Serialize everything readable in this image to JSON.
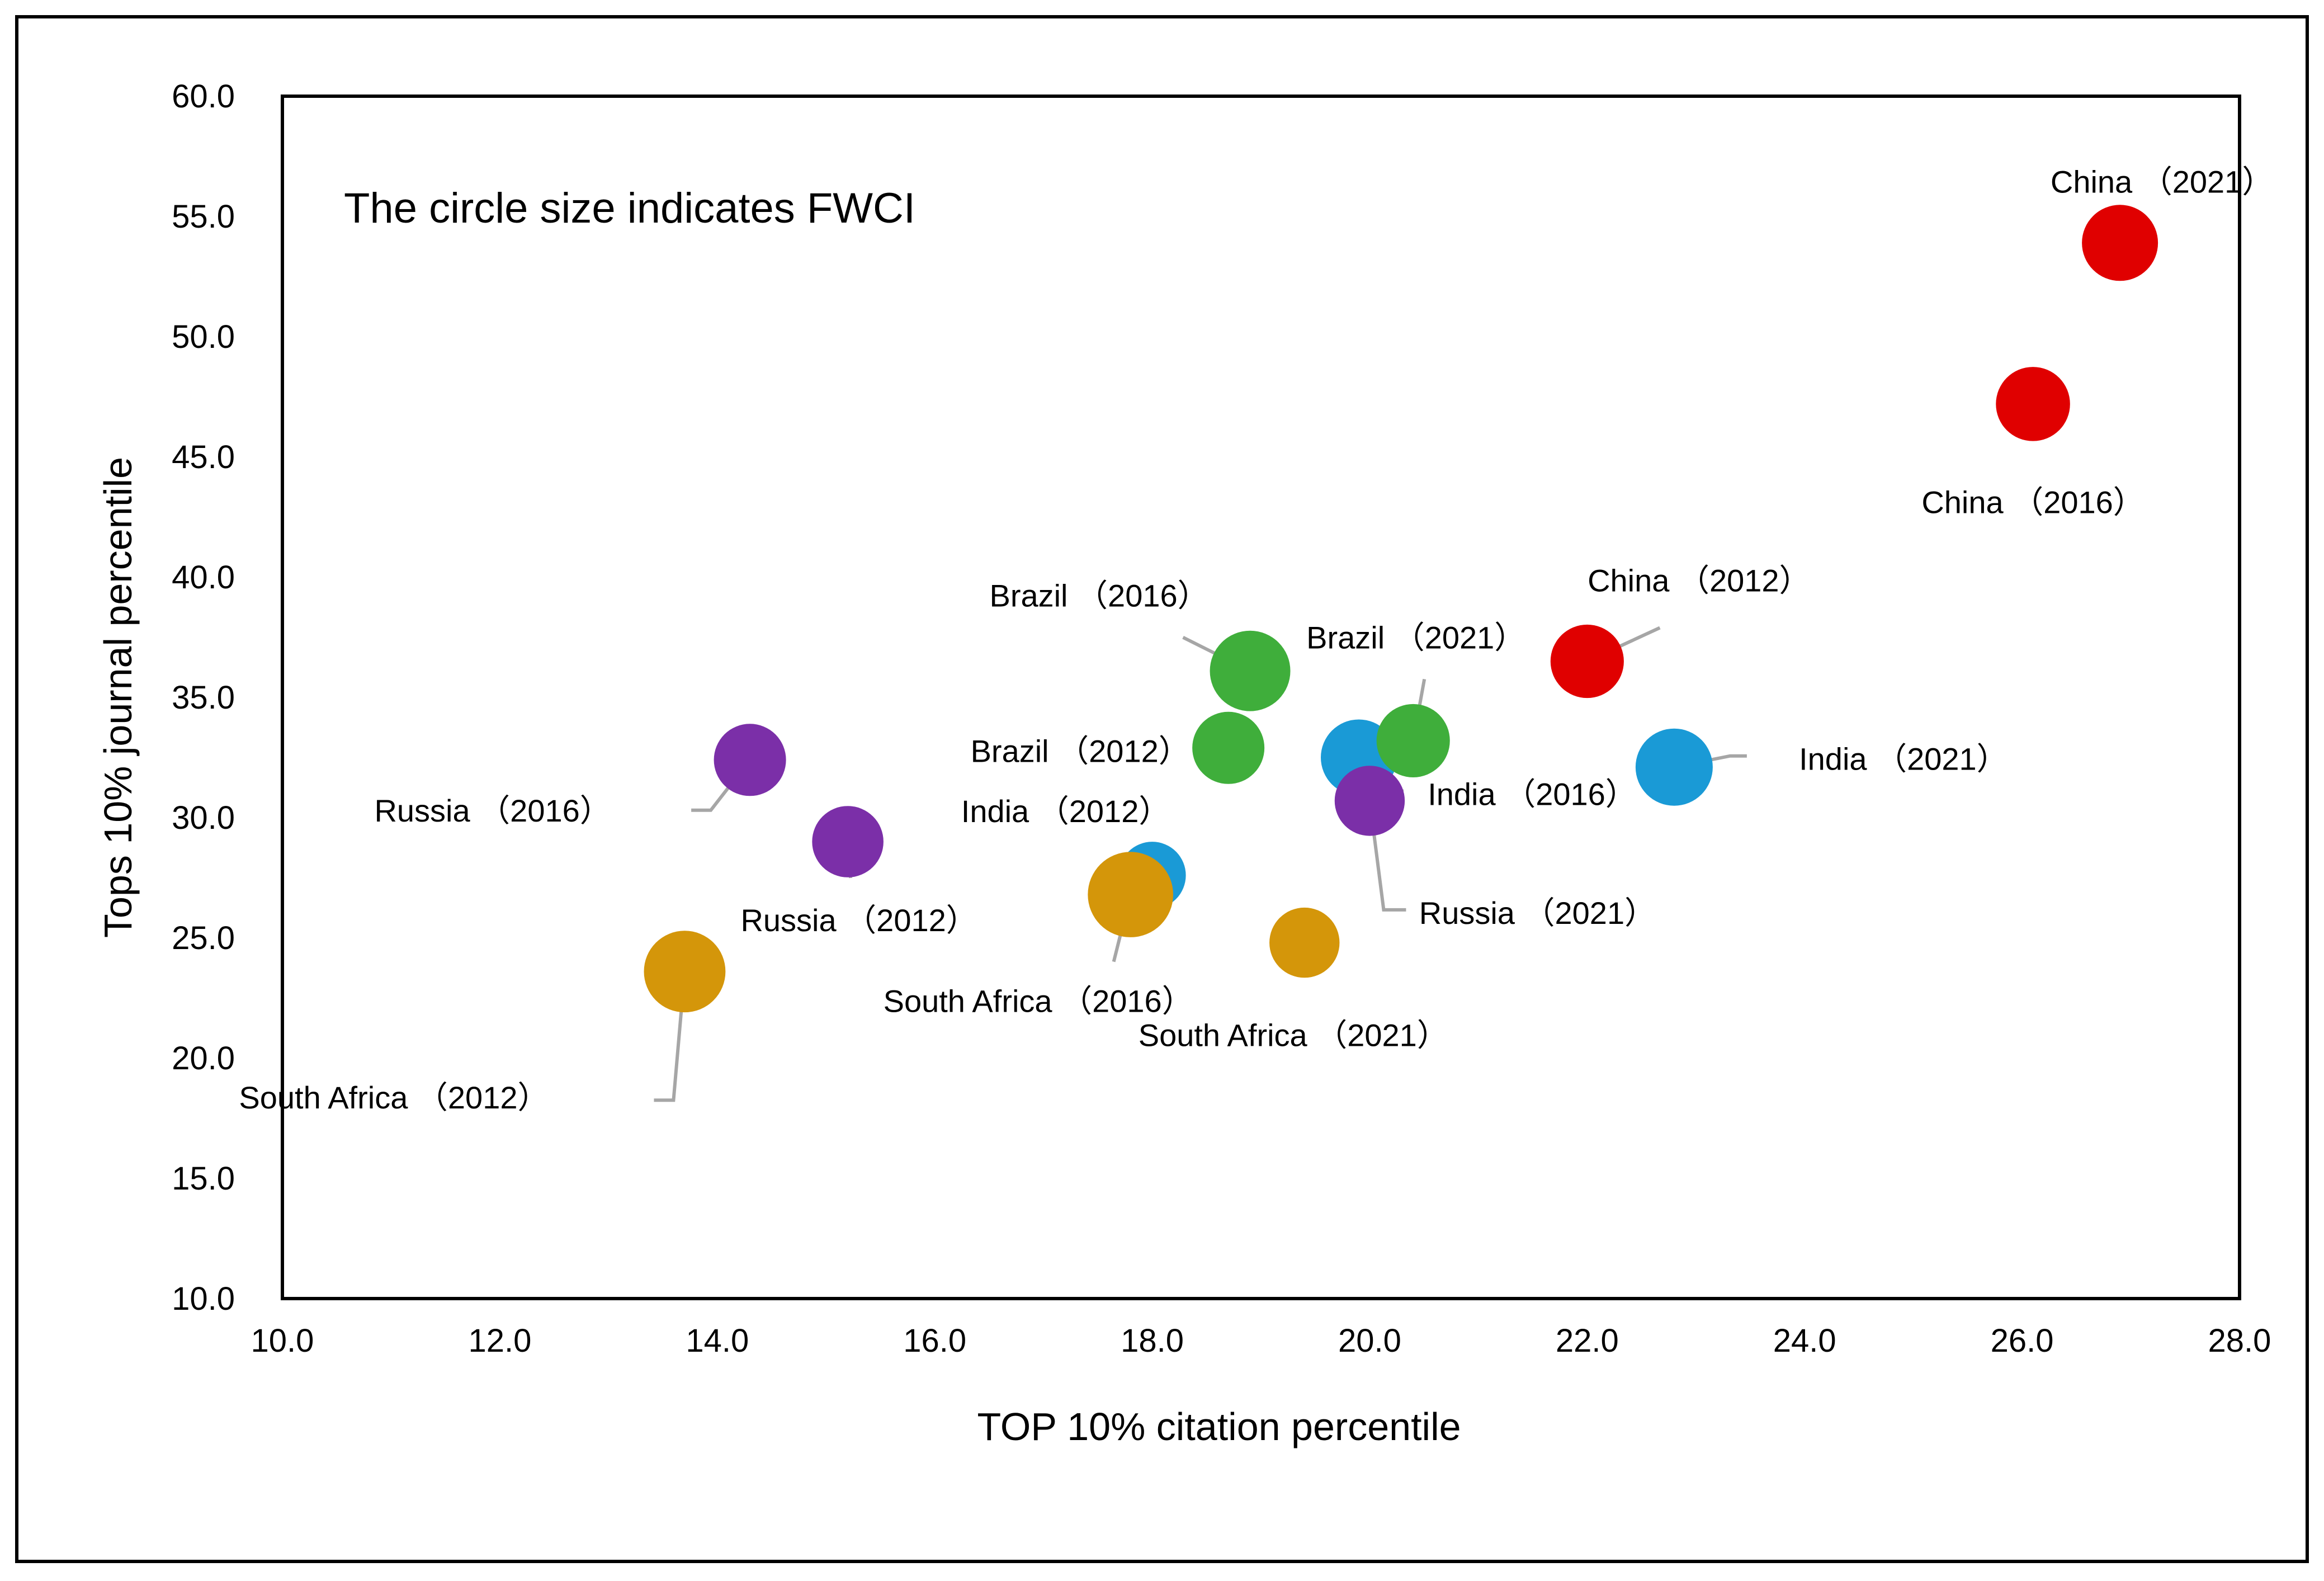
{
  "chart_data": {
    "type": "scatter",
    "subtype": "bubble",
    "title": "",
    "annotation": "The circle size indicates FWCI",
    "xlabel": "TOP 10% citation percentile",
    "ylabel": "Tops 10% journal percentile",
    "xlim": [
      10.0,
      28.0
    ],
    "ylim": [
      10.0,
      60.0
    ],
    "x_ticks": [
      "10.0",
      "12.0",
      "14.0",
      "16.0",
      "18.0",
      "20.0",
      "22.0",
      "24.0",
      "26.0",
      "28.0"
    ],
    "y_ticks": [
      "10.0",
      "15.0",
      "20.0",
      "25.0",
      "30.0",
      "35.0",
      "40.0",
      "45.0",
      "50.0",
      "55.0",
      "60.0"
    ],
    "grid": false,
    "legend": "none",
    "series_colors": {
      "China": "#e00000",
      "India": "#1a9ad6",
      "Brazil": "#3fae3b",
      "Russia": "#7b2fa8",
      "South Africa": "#d4960a"
    },
    "points": [
      {
        "country": "China",
        "year": "2012",
        "label": "China （2012）",
        "x": 22.0,
        "y": 36.5,
        "fwci": 0.93
      },
      {
        "country": "China",
        "year": "2016",
        "label": "China （2016）",
        "x": 26.1,
        "y": 47.2,
        "fwci": 0.95
      },
      {
        "country": "China",
        "year": "2021",
        "label": "China （2021）",
        "x": 26.9,
        "y": 53.9,
        "fwci": 1.0
      },
      {
        "country": "India",
        "year": "2012",
        "label": "India （2012）",
        "x": 18.0,
        "y": 27.6,
        "fwci": 0.78
      },
      {
        "country": "India",
        "year": "2016",
        "label": "India （2016）",
        "x": 19.9,
        "y": 32.5,
        "fwci": 1.0
      },
      {
        "country": "India",
        "year": "2021",
        "label": "India （2021）",
        "x": 22.8,
        "y": 32.1,
        "fwci": 1.03
      },
      {
        "country": "Brazil",
        "year": "2012",
        "label": "Brazil （2012）",
        "x": 18.7,
        "y": 32.9,
        "fwci": 0.9
      },
      {
        "country": "Brazil",
        "year": "2016",
        "label": "Brazil （2016）",
        "x": 18.9,
        "y": 36.1,
        "fwci": 1.12
      },
      {
        "country": "Brazil",
        "year": "2021",
        "label": "Brazil （2021）",
        "x": 20.4,
        "y": 33.2,
        "fwci": 0.93
      },
      {
        "country": "Russia",
        "year": "2012",
        "label": "Russia （2012）",
        "x": 15.2,
        "y": 29.0,
        "fwci": 0.88
      },
      {
        "country": "Russia",
        "year": "2016",
        "label": "Russia （2016）",
        "x": 14.3,
        "y": 32.4,
        "fwci": 0.9
      },
      {
        "country": "Russia",
        "year": "2021",
        "label": "Russia （2021）",
        "x": 20.0,
        "y": 30.7,
        "fwci": 0.85
      },
      {
        "country": "South Africa",
        "year": "2012",
        "label": "South Africa （2012）",
        "x": 13.7,
        "y": 23.6,
        "fwci": 1.15
      },
      {
        "country": "South Africa",
        "year": "2016",
        "label": "South Africa （2016）",
        "x": 17.8,
        "y": 26.8,
        "fwci": 1.26
      },
      {
        "country": "South Africa",
        "year": "2021",
        "label": "South Africa （2021）",
        "x": 19.4,
        "y": 24.8,
        "fwci": 0.85
      }
    ]
  }
}
